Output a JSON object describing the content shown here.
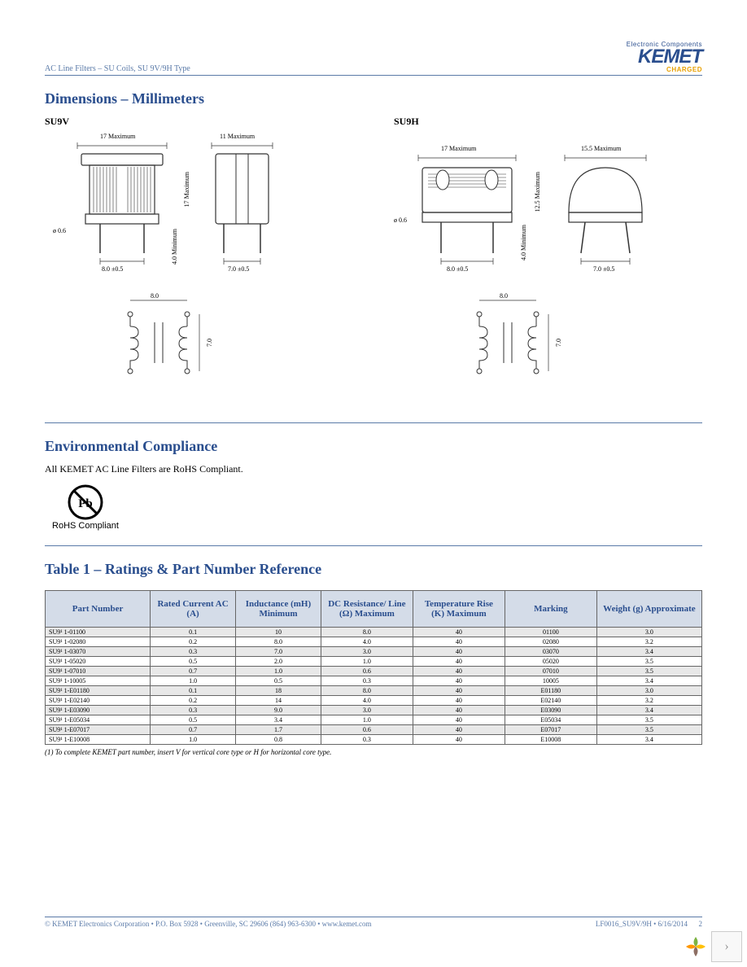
{
  "header": {
    "breadcrumb": "AC Line Filters – SU Coils, SU 9V/9H Type",
    "logo_ec": "Electronic Components",
    "logo_brand": "KEMET",
    "logo_charged": "CHARGED"
  },
  "dimensions": {
    "title": "Dimensions – Millimeters",
    "su9v": {
      "label": "SU9V",
      "top_w": "17 Maximum",
      "side_w": "11 Maximum",
      "height": "17 Maximum",
      "lead_dia": "ø 0.6",
      "pitch1": "8.0 ±0.5",
      "lead_len": "4.0 Minimum",
      "pitch2": "7.0 ±0.5",
      "sch_w": "8.0",
      "sch_h": "7.0"
    },
    "su9h": {
      "label": "SU9H",
      "top_w": "17 Maximum",
      "side_w": "15.5 Maximum",
      "height": "12.5 Maximum",
      "lead_dia": "ø 0.6",
      "pitch1": "8.0 ±0.5",
      "lead_len": "4.0 Minimum",
      "pitch2": "7.0 ±0.5",
      "sch_w": "8.0",
      "sch_h": "7.0"
    }
  },
  "env": {
    "title": "Environmental Compliance",
    "text": "All KEMET AC Line Filters are RoHS Compliant.",
    "rohs_label": "RoHS Compliant"
  },
  "table1": {
    "title": "Table 1 – Ratings & Part Number Reference",
    "columns": [
      "Part Number",
      "Rated Current AC (A)",
      "Inductance (mH) Minimum",
      "DC Resistance/ Line (Ω) Maximum",
      "Temperature Rise (K) Maximum",
      "Marking",
      "Weight (g) Approximate"
    ],
    "col_widths": [
      "16%",
      "13%",
      "13%",
      "14%",
      "14%",
      "14%",
      "16%"
    ],
    "rows": [
      [
        "SU9¹ 1-01100",
        "0.1",
        "10",
        "8.0",
        "40",
        "01100",
        "3.0"
      ],
      [
        "SU9¹ 1-02080",
        "0.2",
        "8.0",
        "4.0",
        "40",
        "02080",
        "3.2"
      ],
      [
        "SU9¹ 1-03070",
        "0.3",
        "7.0",
        "3.0",
        "40",
        "03070",
        "3.4"
      ],
      [
        "SU9¹ 1-05020",
        "0.5",
        "2.0",
        "1.0",
        "40",
        "05020",
        "3.5"
      ],
      [
        "SU9¹ 1-07010",
        "0.7",
        "1.0",
        "0.6",
        "40",
        "07010",
        "3.5"
      ],
      [
        "SU9¹ 1-10005",
        "1.0",
        "0.5",
        "0.3",
        "40",
        "10005",
        "3.4"
      ],
      [
        "SU9¹ 1-E01180",
        "0.1",
        "18",
        "8.0",
        "40",
        "E01180",
        "3.0"
      ],
      [
        "SU9¹ 1-E02140",
        "0.2",
        "14",
        "4.0",
        "40",
        "E02140",
        "3.2"
      ],
      [
        "SU9¹ 1-E03090",
        "0.3",
        "9.0",
        "3.0",
        "40",
        "E03090",
        "3.4"
      ],
      [
        "SU9¹ 1-E05034",
        "0.5",
        "3.4",
        "1.0",
        "40",
        "E05034",
        "3.5"
      ],
      [
        "SU9¹ 1-E07017",
        "0.7",
        "1.7",
        "0.6",
        "40",
        "E07017",
        "3.5"
      ],
      [
        "SU9¹ 1-E10008",
        "1.0",
        "0.8",
        "0.3",
        "40",
        "E10008",
        "3.4"
      ]
    ],
    "footnote": "(1) To complete KEMET part number, insert V for vertical core type or H for horizontal core type."
  },
  "footer": {
    "left": "© KEMET Electronics Corporation • P.O. Box 5928 • Greenville, SC 29606 (864) 963-6300 • www.kemet.com",
    "right": "LF0016_SU9V/9H • 6/16/2014",
    "page": "2"
  },
  "colors": {
    "heading": "#2a4e8e",
    "rule": "#5a7aa8",
    "th_bg": "#d4dce8",
    "alt_bg": "#e8e8e8"
  }
}
